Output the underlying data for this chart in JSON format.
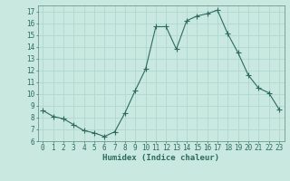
{
  "x": [
    0,
    1,
    2,
    3,
    4,
    5,
    6,
    7,
    8,
    9,
    10,
    11,
    12,
    13,
    14,
    15,
    16,
    17,
    18,
    19,
    20,
    21,
    22,
    23
  ],
  "y": [
    8.6,
    8.1,
    7.9,
    7.4,
    6.9,
    6.7,
    6.4,
    6.8,
    8.4,
    10.3,
    12.1,
    15.7,
    15.7,
    13.8,
    16.2,
    16.6,
    16.8,
    17.1,
    15.1,
    13.5,
    11.6,
    10.5,
    10.1,
    8.7
  ],
  "line_color": "#2E6B5E",
  "marker": "+",
  "marker_size": 4,
  "bg_color": "#C8E8E0",
  "grid_color": "#B0D8CE",
  "xlabel": "Humidex (Indice chaleur)",
  "xlim": [
    -0.5,
    23.5
  ],
  "ylim": [
    6,
    17.5
  ],
  "yticks": [
    6,
    7,
    8,
    9,
    10,
    11,
    12,
    13,
    14,
    15,
    16,
    17
  ],
  "xticks": [
    0,
    1,
    2,
    3,
    4,
    5,
    6,
    7,
    8,
    9,
    10,
    11,
    12,
    13,
    14,
    15,
    16,
    17,
    18,
    19,
    20,
    21,
    22,
    23
  ],
  "label_fontsize": 6.5,
  "tick_fontsize": 5.5
}
